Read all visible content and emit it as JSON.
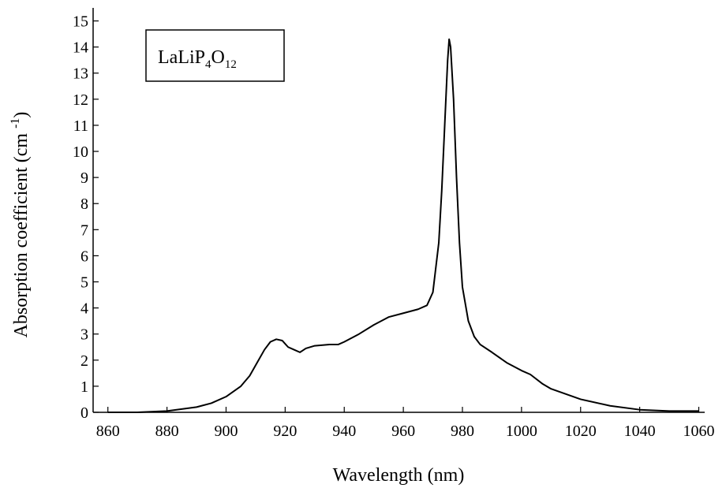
{
  "chart_data": {
    "type": "line",
    "xlabel": "Wavelength (nm)",
    "ylabel": {
      "parts": [
        "Absorption coefficient (cm",
        "-1",
        ")"
      ]
    },
    "annotation": {
      "parts": [
        "LaLiP",
        "4",
        "O",
        "12"
      ]
    },
    "color": "#000000",
    "x": [
      860,
      870,
      880,
      890,
      895,
      900,
      905,
      908,
      910,
      913,
      915,
      917,
      919,
      921,
      923,
      925,
      927,
      930,
      935,
      938,
      940,
      945,
      950,
      955,
      960,
      965,
      968,
      970,
      972,
      973,
      974,
      975,
      975.5,
      976,
      977,
      978,
      979,
      980,
      982,
      984,
      986,
      990,
      995,
      1000,
      1003,
      1007,
      1010,
      1020,
      1030,
      1040,
      1050,
      1060
    ],
    "values": [
      0,
      0,
      0.05,
      0.2,
      0.35,
      0.6,
      1.0,
      1.4,
      1.8,
      2.4,
      2.7,
      2.8,
      2.75,
      2.5,
      2.4,
      2.3,
      2.45,
      2.55,
      2.6,
      2.6,
      2.7,
      3.0,
      3.35,
      3.65,
      3.8,
      3.95,
      4.1,
      4.6,
      6.5,
      8.5,
      11,
      13.5,
      14.3,
      14.0,
      12,
      9,
      6.5,
      4.8,
      3.5,
      2.9,
      2.6,
      2.3,
      1.9,
      1.6,
      1.45,
      1.1,
      0.9,
      0.5,
      0.25,
      0.1,
      0.05,
      0.05
    ],
    "xlim": [
      855,
      1062
    ],
    "ylim": [
      0,
      15.5
    ],
    "xticks": [
      860,
      880,
      900,
      920,
      940,
      960,
      980,
      1000,
      1020,
      1040,
      1060
    ],
    "yticks": [
      0,
      1,
      2,
      3,
      4,
      5,
      6,
      7,
      8,
      9,
      10,
      11,
      12,
      13,
      14,
      15
    ]
  }
}
